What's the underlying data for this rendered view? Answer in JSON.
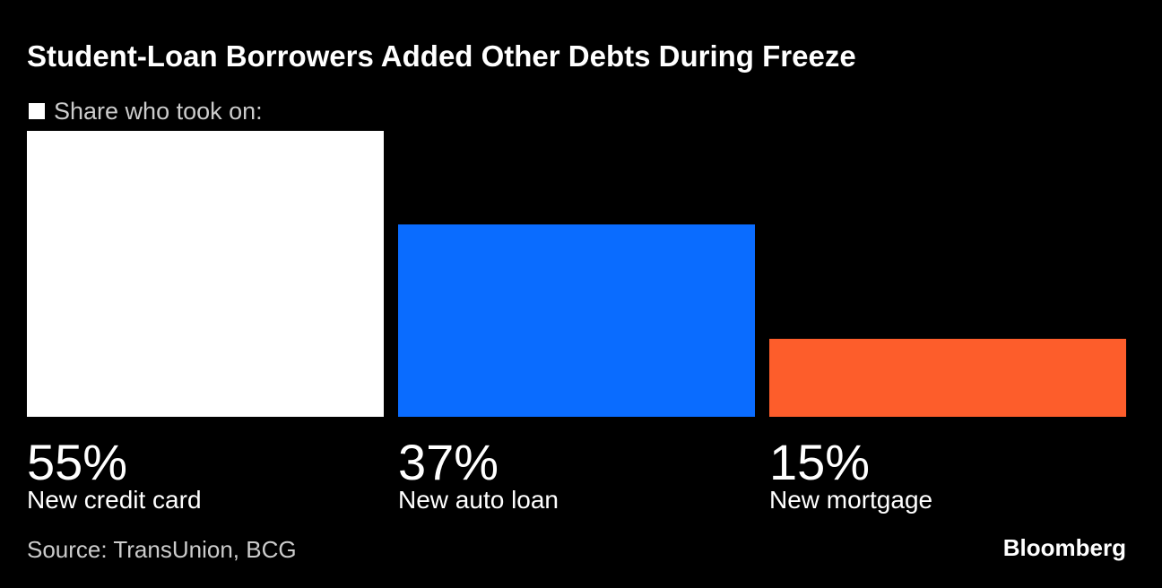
{
  "chart_data": {
    "type": "bar",
    "title": "Student-Loan Borrowers Added Other Debts During Freeze",
    "categories": [
      "New credit card",
      "New auto loan",
      "New mortgage"
    ],
    "series": [
      {
        "name": "Share who took on:",
        "color": "#ffffff",
        "values": [
          55,
          37,
          15
        ],
        "value_labels": [
          "55%",
          "37%",
          "15%"
        ],
        "colors": [
          "#ffffff",
          "#0a6cff",
          "#fd5d2b"
        ]
      }
    ],
    "source": "Source: TransUnion, BCG",
    "brand": "Bloomberg"
  }
}
